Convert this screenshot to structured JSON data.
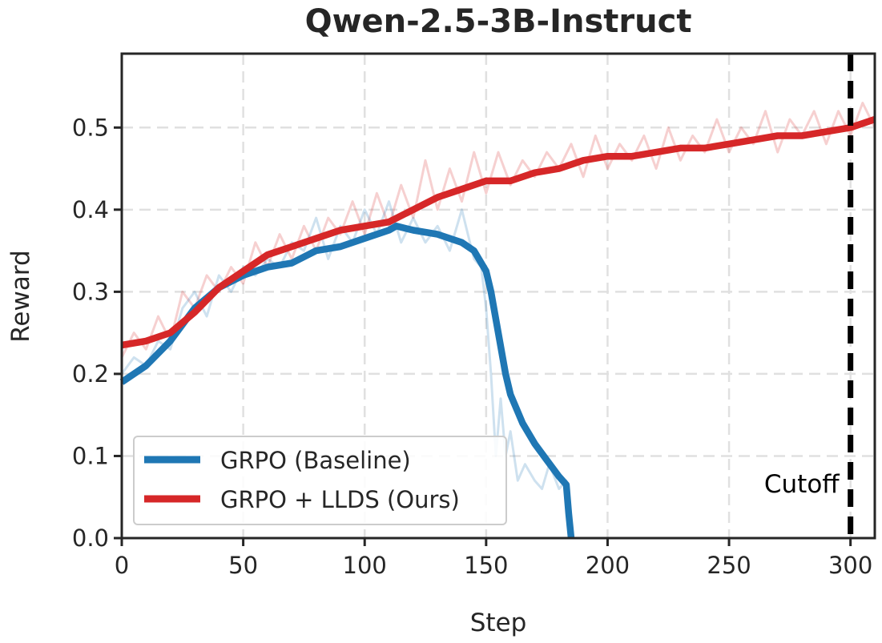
{
  "chart_data": {
    "type": "line",
    "title": "Qwen-2.5-3B-Instruct",
    "xlabel": "Step",
    "ylabel": "Reward",
    "xlim": [
      0,
      310
    ],
    "ylim": [
      0,
      0.59
    ],
    "xticks": [
      0,
      50,
      100,
      150,
      200,
      250,
      300
    ],
    "xtick_labels": [
      "0",
      "50",
      "100",
      "150",
      "200",
      "250",
      "300"
    ],
    "yticks": [
      0.0,
      0.1,
      0.2,
      0.3,
      0.4,
      0.5
    ],
    "ytick_labels": [
      "0.0",
      "0.1",
      "0.2",
      "0.3",
      "0.4",
      "0.5"
    ],
    "grid": true,
    "legend_position": "lower-left",
    "annotation": {
      "text": "Cutoff",
      "x": 300
    },
    "series": [
      {
        "name": "GRPO (Baseline)",
        "color": "#1f77b4",
        "smoothed": {
          "x": [
            0,
            10,
            20,
            30,
            40,
            50,
            60,
            70,
            80,
            90,
            100,
            110,
            113,
            120,
            130,
            140,
            145,
            150,
            152,
            155,
            158,
            160,
            165,
            170,
            175,
            180,
            183,
            184,
            185
          ],
          "y": [
            0.19,
            0.21,
            0.24,
            0.28,
            0.305,
            0.32,
            0.33,
            0.335,
            0.35,
            0.355,
            0.365,
            0.375,
            0.38,
            0.375,
            0.37,
            0.36,
            0.35,
            0.325,
            0.3,
            0.25,
            0.2,
            0.175,
            0.14,
            0.115,
            0.095,
            0.075,
            0.065,
            0.03,
            0.0
          ]
        },
        "raw": {
          "x": [
            0,
            5,
            10,
            15,
            20,
            25,
            30,
            35,
            40,
            45,
            50,
            55,
            60,
            65,
            70,
            75,
            80,
            85,
            90,
            95,
            100,
            105,
            110,
            115,
            120,
            125,
            130,
            135,
            140,
            145,
            148,
            150,
            152,
            154,
            156,
            158,
            160,
            163,
            166,
            170,
            173,
            176,
            180,
            183,
            185
          ],
          "y": [
            0.2,
            0.22,
            0.21,
            0.24,
            0.23,
            0.28,
            0.3,
            0.27,
            0.32,
            0.3,
            0.33,
            0.32,
            0.34,
            0.33,
            0.36,
            0.35,
            0.39,
            0.34,
            0.38,
            0.36,
            0.4,
            0.37,
            0.41,
            0.36,
            0.39,
            0.36,
            0.38,
            0.35,
            0.4,
            0.34,
            0.33,
            0.28,
            0.2,
            0.1,
            0.17,
            0.1,
            0.13,
            0.07,
            0.09,
            0.07,
            0.06,
            0.09,
            0.06,
            0.07,
            0.0
          ]
        }
      },
      {
        "name": "GRPO + LLDS (Ours)",
        "color": "#d62728",
        "smoothed": {
          "x": [
            0,
            10,
            20,
            30,
            40,
            50,
            60,
            70,
            80,
            90,
            100,
            110,
            120,
            130,
            140,
            150,
            160,
            170,
            180,
            190,
            200,
            210,
            220,
            230,
            240,
            250,
            260,
            270,
            280,
            290,
            300,
            305,
            310
          ],
          "y": [
            0.235,
            0.24,
            0.25,
            0.275,
            0.305,
            0.325,
            0.345,
            0.355,
            0.365,
            0.375,
            0.38,
            0.385,
            0.4,
            0.415,
            0.425,
            0.435,
            0.435,
            0.445,
            0.45,
            0.46,
            0.465,
            0.465,
            0.47,
            0.475,
            0.475,
            0.48,
            0.485,
            0.49,
            0.49,
            0.495,
            0.5,
            0.505,
            0.51
          ]
        },
        "raw": {
          "x": [
            0,
            5,
            10,
            15,
            20,
            25,
            30,
            35,
            40,
            45,
            50,
            55,
            60,
            65,
            70,
            75,
            80,
            85,
            90,
            95,
            100,
            105,
            110,
            115,
            120,
            125,
            130,
            135,
            140,
            145,
            150,
            155,
            160,
            165,
            170,
            175,
            180,
            185,
            190,
            195,
            200,
            205,
            210,
            215,
            220,
            225,
            230,
            235,
            240,
            245,
            250,
            255,
            260,
            265,
            270,
            275,
            280,
            285,
            290,
            295,
            300,
            305,
            310
          ],
          "y": [
            0.22,
            0.25,
            0.23,
            0.27,
            0.24,
            0.3,
            0.28,
            0.32,
            0.3,
            0.33,
            0.31,
            0.36,
            0.33,
            0.37,
            0.34,
            0.38,
            0.35,
            0.39,
            0.37,
            0.41,
            0.37,
            0.42,
            0.38,
            0.43,
            0.39,
            0.46,
            0.4,
            0.45,
            0.41,
            0.47,
            0.42,
            0.47,
            0.43,
            0.46,
            0.44,
            0.47,
            0.45,
            0.48,
            0.44,
            0.49,
            0.45,
            0.48,
            0.46,
            0.49,
            0.45,
            0.5,
            0.46,
            0.49,
            0.47,
            0.51,
            0.47,
            0.5,
            0.48,
            0.52,
            0.47,
            0.51,
            0.49,
            0.52,
            0.48,
            0.52,
            0.49,
            0.53,
            0.5
          ]
        }
      }
    ]
  }
}
